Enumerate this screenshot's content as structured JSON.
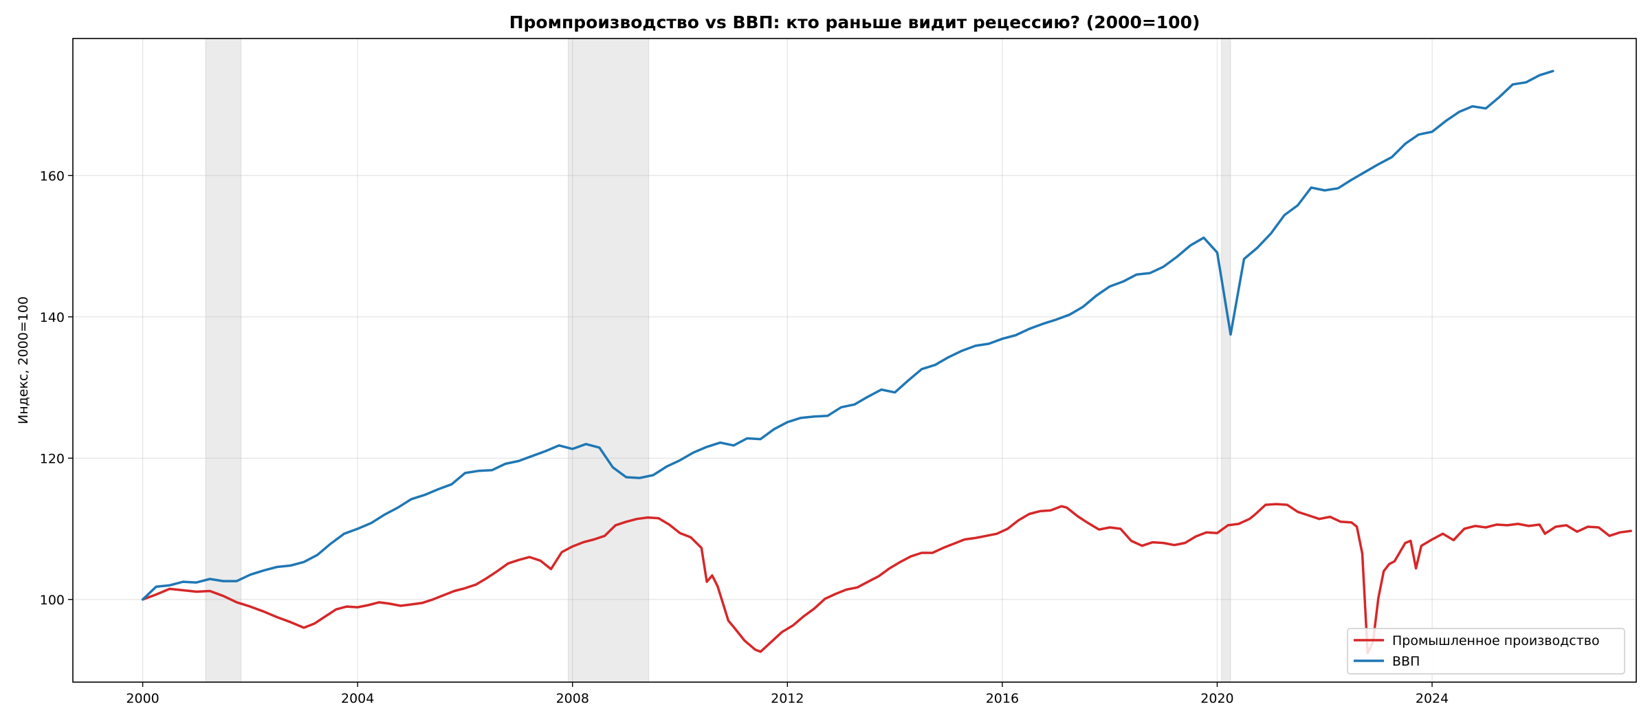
{
  "chart_data": {
    "type": "line",
    "title": "Промпроизводство vs ВВП: кто раньше видит рецессию? (2000=100)",
    "xlabel": "",
    "ylabel": "Индекс, 2000=100",
    "xlim": [
      1998.7,
      2027.8
    ],
    "ylim": [
      88.3,
      179.4
    ],
    "x_ticks": [
      2000,
      2004,
      2008,
      2012,
      2016,
      2020,
      2024
    ],
    "y_ticks": [
      100,
      120,
      140,
      160
    ],
    "grid": true,
    "legend_position": "bottom-right",
    "recession_bands": [
      {
        "start": 2001.17,
        "end": 2001.83
      },
      {
        "start": 2007.92,
        "end": 2009.42
      },
      {
        "start": 2020.08,
        "end": 2020.25
      }
    ],
    "series": [
      {
        "name": "Промышленное производство",
        "color": "#d62728",
        "points": [
          [
            2000.0,
            100.0
          ],
          [
            2000.25,
            100.7
          ],
          [
            2000.5,
            101.5
          ],
          [
            2000.75,
            101.3
          ],
          [
            2001.0,
            101.1
          ],
          [
            2001.25,
            101.2
          ],
          [
            2001.5,
            100.5
          ],
          [
            2001.75,
            99.6
          ],
          [
            2002.0,
            99.0
          ],
          [
            2002.25,
            98.3
          ],
          [
            2002.5,
            97.5
          ],
          [
            2002.75,
            96.8
          ],
          [
            2003.0,
            96.0
          ],
          [
            2003.2,
            96.6
          ],
          [
            2003.4,
            97.6
          ],
          [
            2003.6,
            98.6
          ],
          [
            2003.8,
            99.0
          ],
          [
            2004.0,
            98.9
          ],
          [
            2004.2,
            99.2
          ],
          [
            2004.4,
            99.6
          ],
          [
            2004.6,
            99.4
          ],
          [
            2004.8,
            99.1
          ],
          [
            2005.0,
            99.3
          ],
          [
            2005.2,
            99.5
          ],
          [
            2005.4,
            100.0
          ],
          [
            2005.6,
            100.6
          ],
          [
            2005.8,
            101.2
          ],
          [
            2006.0,
            101.6
          ],
          [
            2006.2,
            102.1
          ],
          [
            2006.4,
            103.0
          ],
          [
            2006.6,
            104.0
          ],
          [
            2006.8,
            105.1
          ],
          [
            2007.0,
            105.6
          ],
          [
            2007.2,
            106.0
          ],
          [
            2007.4,
            105.5
          ],
          [
            2007.6,
            104.3
          ],
          [
            2007.8,
            106.7
          ],
          [
            2008.0,
            107.5
          ],
          [
            2008.2,
            108.1
          ],
          [
            2008.4,
            108.5
          ],
          [
            2008.6,
            109.0
          ],
          [
            2008.8,
            110.5
          ],
          [
            2009.0,
            111.0
          ],
          [
            2009.2,
            111.4
          ],
          [
            2009.4,
            111.6
          ],
          [
            2009.6,
            111.5
          ],
          [
            2009.8,
            110.6
          ],
          [
            2010.0,
            109.4
          ],
          [
            2010.2,
            108.8
          ],
          [
            2010.4,
            107.3
          ],
          [
            2010.5,
            102.5
          ],
          [
            2010.6,
            103.4
          ],
          [
            2010.7,
            101.9
          ],
          [
            2010.9,
            97.0
          ],
          [
            2011.0,
            96.1
          ],
          [
            2011.2,
            94.2
          ],
          [
            2011.4,
            92.9
          ],
          [
            2011.5,
            92.6
          ],
          [
            2011.7,
            94.0
          ],
          [
            2011.9,
            95.4
          ],
          [
            2012.1,
            96.3
          ],
          [
            2012.3,
            97.6
          ],
          [
            2012.5,
            98.7
          ],
          [
            2012.7,
            100.1
          ],
          [
            2012.9,
            100.8
          ],
          [
            2013.1,
            101.4
          ],
          [
            2013.3,
            101.7
          ],
          [
            2013.5,
            102.5
          ],
          [
            2013.7,
            103.3
          ],
          [
            2013.9,
            104.4
          ],
          [
            2014.1,
            105.3
          ],
          [
            2014.3,
            106.1
          ],
          [
            2014.5,
            106.6
          ],
          [
            2014.7,
            106.6
          ],
          [
            2014.9,
            107.3
          ],
          [
            2015.1,
            107.9
          ],
          [
            2015.3,
            108.5
          ],
          [
            2015.5,
            108.7
          ],
          [
            2015.7,
            109.0
          ],
          [
            2015.9,
            109.3
          ],
          [
            2016.1,
            110.0
          ],
          [
            2016.3,
            111.2
          ],
          [
            2016.5,
            112.1
          ],
          [
            2016.7,
            112.5
          ],
          [
            2016.9,
            112.6
          ],
          [
            2017.1,
            113.2
          ],
          [
            2017.2,
            113.0
          ],
          [
            2017.4,
            111.8
          ],
          [
            2017.6,
            110.8
          ],
          [
            2017.8,
            109.9
          ],
          [
            2018.0,
            110.2
          ],
          [
            2018.2,
            110.0
          ],
          [
            2018.4,
            108.3
          ],
          [
            2018.6,
            107.6
          ],
          [
            2018.8,
            108.1
          ],
          [
            2019.0,
            108.0
          ],
          [
            2019.2,
            107.7
          ],
          [
            2019.4,
            108.0
          ],
          [
            2019.6,
            108.9
          ],
          [
            2019.8,
            109.5
          ],
          [
            2020.0,
            109.4
          ],
          [
            2020.2,
            110.5
          ],
          [
            2020.4,
            110.7
          ],
          [
            2020.6,
            111.4
          ],
          [
            2020.7,
            112.0
          ],
          [
            2020.9,
            113.4
          ],
          [
            2021.1,
            113.5
          ],
          [
            2021.3,
            113.4
          ],
          [
            2021.5,
            112.4
          ],
          [
            2021.7,
            111.9
          ],
          [
            2021.9,
            111.4
          ],
          [
            2022.1,
            111.7
          ],
          [
            2022.3,
            111.0
          ],
          [
            2022.5,
            110.9
          ],
          [
            2022.6,
            110.3
          ],
          [
            2022.7,
            106.5
          ],
          [
            2022.8,
            92.4
          ],
          [
            2022.9,
            94.0
          ],
          [
            2023.0,
            100.2
          ],
          [
            2023.1,
            104.0
          ],
          [
            2023.2,
            105.0
          ],
          [
            2023.3,
            105.4
          ],
          [
            2023.4,
            106.7
          ],
          [
            2023.5,
            108.0
          ],
          [
            2023.6,
            108.3
          ],
          [
            2023.7,
            104.4
          ],
          [
            2023.8,
            107.6
          ],
          [
            2024.0,
            108.5
          ],
          [
            2024.2,
            109.3
          ],
          [
            2024.4,
            108.4
          ],
          [
            2024.6,
            110.0
          ],
          [
            2024.8,
            110.4
          ],
          [
            2025.0,
            110.2
          ],
          [
            2025.2,
            110.6
          ],
          [
            2025.4,
            110.5
          ],
          [
            2025.6,
            110.7
          ],
          [
            2025.8,
            110.4
          ],
          [
            2026.0,
            110.6
          ],
          [
            2026.1,
            109.3
          ],
          [
            2026.3,
            110.3
          ],
          [
            2026.5,
            110.5
          ],
          [
            2026.7,
            109.6
          ],
          [
            2026.9,
            110.3
          ],
          [
            2027.1,
            110.2
          ],
          [
            2027.3,
            109.0
          ],
          [
            2027.5,
            109.5
          ],
          [
            2027.7,
            109.7
          ]
        ]
      },
      {
        "name": "ВВП",
        "color": "#1f77b4",
        "points": [
          [
            2000.0,
            100.0
          ],
          [
            2000.25,
            101.8
          ],
          [
            2000.5,
            102.0
          ],
          [
            2000.75,
            102.5
          ],
          [
            2001.0,
            102.4
          ],
          [
            2001.25,
            102.9
          ],
          [
            2001.5,
            102.6
          ],
          [
            2001.75,
            102.6
          ],
          [
            2002.0,
            103.5
          ],
          [
            2002.25,
            104.1
          ],
          [
            2002.5,
            104.6
          ],
          [
            2002.75,
            104.8
          ],
          [
            2003.0,
            105.3
          ],
          [
            2003.25,
            106.3
          ],
          [
            2003.5,
            107.9
          ],
          [
            2003.75,
            109.3
          ],
          [
            2004.0,
            110.0
          ],
          [
            2004.25,
            110.8
          ],
          [
            2004.5,
            112.0
          ],
          [
            2004.75,
            113.0
          ],
          [
            2005.0,
            114.2
          ],
          [
            2005.25,
            114.8
          ],
          [
            2005.5,
            115.6
          ],
          [
            2005.75,
            116.3
          ],
          [
            2006.0,
            117.9
          ],
          [
            2006.25,
            118.2
          ],
          [
            2006.5,
            118.3
          ],
          [
            2006.75,
            119.2
          ],
          [
            2007.0,
            119.6
          ],
          [
            2007.25,
            120.3
          ],
          [
            2007.5,
            121.0
          ],
          [
            2007.75,
            121.8
          ],
          [
            2008.0,
            121.3
          ],
          [
            2008.25,
            122.0
          ],
          [
            2008.5,
            121.5
          ],
          [
            2008.75,
            118.7
          ],
          [
            2009.0,
            117.3
          ],
          [
            2009.25,
            117.2
          ],
          [
            2009.5,
            117.6
          ],
          [
            2009.75,
            118.8
          ],
          [
            2010.0,
            119.7
          ],
          [
            2010.25,
            120.8
          ],
          [
            2010.5,
            121.6
          ],
          [
            2010.75,
            122.2
          ],
          [
            2011.0,
            121.8
          ],
          [
            2011.25,
            122.8
          ],
          [
            2011.5,
            122.7
          ],
          [
            2011.75,
            124.1
          ],
          [
            2012.0,
            125.1
          ],
          [
            2012.25,
            125.7
          ],
          [
            2012.5,
            125.9
          ],
          [
            2012.75,
            126.0
          ],
          [
            2013.0,
            127.2
          ],
          [
            2013.25,
            127.6
          ],
          [
            2013.5,
            128.7
          ],
          [
            2013.75,
            129.7
          ],
          [
            2014.0,
            129.3
          ],
          [
            2014.25,
            131.0
          ],
          [
            2014.5,
            132.6
          ],
          [
            2014.75,
            133.2
          ],
          [
            2015.0,
            134.3
          ],
          [
            2015.25,
            135.2
          ],
          [
            2015.5,
            135.9
          ],
          [
            2015.75,
            136.2
          ],
          [
            2016.0,
            136.9
          ],
          [
            2016.25,
            137.4
          ],
          [
            2016.5,
            138.3
          ],
          [
            2016.75,
            139.0
          ],
          [
            2017.0,
            139.6
          ],
          [
            2017.25,
            140.3
          ],
          [
            2017.5,
            141.4
          ],
          [
            2017.75,
            143.0
          ],
          [
            2018.0,
            144.3
          ],
          [
            2018.25,
            145.0
          ],
          [
            2018.5,
            146.0
          ],
          [
            2018.75,
            146.2
          ],
          [
            2019.0,
            147.1
          ],
          [
            2019.25,
            148.5
          ],
          [
            2019.5,
            150.1
          ],
          [
            2019.75,
            151.2
          ],
          [
            2020.0,
            149.1
          ],
          [
            2020.25,
            137.5
          ],
          [
            2020.5,
            148.2
          ],
          [
            2020.75,
            149.8
          ],
          [
            2021.0,
            151.8
          ],
          [
            2021.25,
            154.4
          ],
          [
            2021.5,
            155.8
          ],
          [
            2021.75,
            158.3
          ],
          [
            2022.0,
            157.9
          ],
          [
            2022.25,
            158.2
          ],
          [
            2022.5,
            159.4
          ],
          [
            2022.75,
            160.5
          ],
          [
            2023.0,
            161.6
          ],
          [
            2023.25,
            162.6
          ],
          [
            2023.5,
            164.5
          ],
          [
            2023.75,
            165.8
          ],
          [
            2024.0,
            166.2
          ],
          [
            2024.25,
            167.7
          ],
          [
            2024.5,
            169.0
          ],
          [
            2024.75,
            169.8
          ],
          [
            2025.0,
            169.5
          ],
          [
            2025.25,
            171.1
          ],
          [
            2025.5,
            172.9
          ],
          [
            2025.75,
            173.2
          ],
          [
            2026.0,
            174.2
          ],
          [
            2026.25,
            174.8
          ]
        ]
      }
    ]
  }
}
